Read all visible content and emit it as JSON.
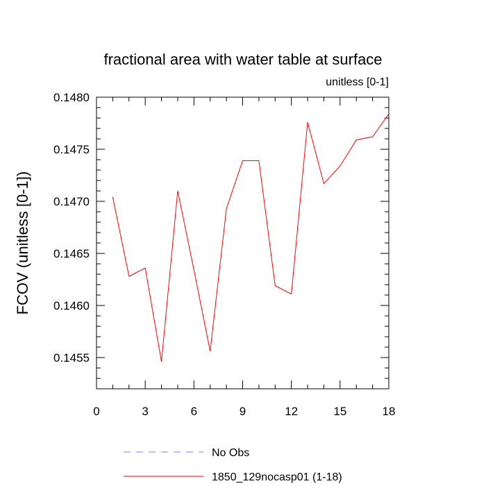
{
  "chart_data": {
    "type": "line",
    "title": "fractional area with water table at surface",
    "subtitle": "unitless [0-1]",
    "xlabel": "",
    "ylabel": "FCOV  (unitless [0-1])",
    "xlim": [
      0,
      18
    ],
    "ylim": [
      0.1452,
      0.148
    ],
    "xticks": [
      0,
      3,
      6,
      9,
      12,
      15,
      18
    ],
    "xtick_labels": [
      "0",
      "3",
      "6",
      "9",
      "12",
      "15",
      "18"
    ],
    "yticks": [
      0.1455,
      0.146,
      0.1465,
      0.147,
      0.1475,
      0.148
    ],
    "ytick_labels": [
      "0.1455",
      "0.1460",
      "0.1465",
      "0.1470",
      "0.1475",
      "0.1480"
    ],
    "grid": false,
    "legend_position": "bottom",
    "series": [
      {
        "name": "No Obs",
        "color": "#8080ff",
        "dashed": true,
        "x": [],
        "values": []
      },
      {
        "name": "1850_129nocasp01 (1-18)",
        "color": "#ff0000",
        "dashed": false,
        "x": [
          1,
          2,
          3,
          4,
          5,
          6,
          7,
          8,
          9,
          10,
          11,
          12,
          13,
          14,
          15,
          16,
          17,
          18
        ],
        "values": [
          0.14704,
          0.14628,
          0.14636,
          0.14546,
          0.1471,
          0.14634,
          0.14556,
          0.14693,
          0.14739,
          0.14739,
          0.14619,
          0.14611,
          0.14776,
          0.14717,
          0.14734,
          0.14759,
          0.14762,
          0.14784
        ]
      }
    ]
  }
}
